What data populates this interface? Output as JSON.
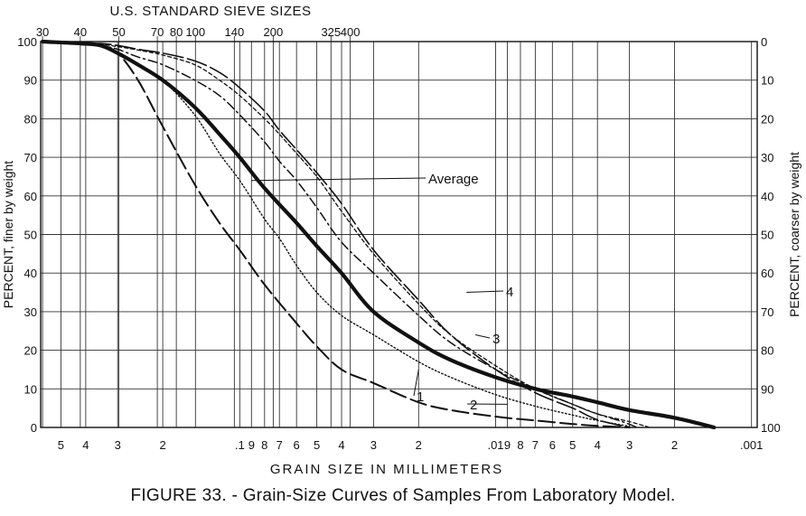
{
  "chart_data": {
    "type": "line",
    "top_axis_title": "U.S. STANDARD SIEVE SIZES",
    "top_ticks": [
      {
        "label": "30",
        "mm": 0.59
      },
      {
        "label": "40",
        "mm": 0.42
      },
      {
        "label": "50",
        "mm": 0.297
      },
      {
        "label": "70",
        "mm": 0.21
      },
      {
        "label": "80",
        "mm": 0.177
      },
      {
        "label": "100",
        "mm": 0.149
      },
      {
        "label": "140",
        "mm": 0.105
      },
      {
        "label": "200",
        "mm": 0.074
      },
      {
        "label": "325",
        "mm": 0.044
      },
      {
        "label": "400",
        "mm": 0.037
      }
    ],
    "xlabel": "GRAIN SIZE IN MILLIMETERS",
    "x_scale": "log",
    "x_reversed": true,
    "xlim": [
      0.6,
      0.00095
    ],
    "x_ticks": [
      {
        "label": "5",
        "mm": 0.5
      },
      {
        "label": "4",
        "mm": 0.4
      },
      {
        "label": "3",
        "mm": 0.3
      },
      {
        "label": "2",
        "mm": 0.2
      },
      {
        "label": ".1",
        "mm": 0.1
      },
      {
        "label": "9",
        "mm": 0.09
      },
      {
        "label": "8",
        "mm": 0.08
      },
      {
        "label": "7",
        "mm": 0.07
      },
      {
        "label": "6",
        "mm": 0.06
      },
      {
        "label": "5",
        "mm": 0.05
      },
      {
        "label": "4",
        "mm": 0.04
      },
      {
        "label": "3",
        "mm": 0.03
      },
      {
        "label": "2",
        "mm": 0.02
      },
      {
        "label": ".01",
        "mm": 0.01
      },
      {
        "label": "9",
        "mm": 0.009
      },
      {
        "label": "8",
        "mm": 0.008
      },
      {
        "label": "7",
        "mm": 0.007
      },
      {
        "label": "6",
        "mm": 0.006
      },
      {
        "label": "5",
        "mm": 0.005
      },
      {
        "label": "4",
        "mm": 0.004
      },
      {
        "label": "3",
        "mm": 0.003
      },
      {
        "label": "2",
        "mm": 0.002
      },
      {
        "label": ".001",
        "mm": 0.001
      }
    ],
    "ylabel_left": "PERCENT, finer by weight",
    "ylabel_right": "PERCENT, coarser by weight",
    "ylim": [
      0,
      100
    ],
    "y_ticks_left": [
      "0",
      "10",
      "20",
      "30",
      "40",
      "50",
      "60",
      "70",
      "80",
      "90",
      "100"
    ],
    "y_ticks_right": [
      "100",
      "90",
      "80",
      "70",
      "60",
      "50",
      "40",
      "30",
      "20",
      "10",
      "0"
    ],
    "grid": true,
    "series": [
      {
        "name": "1",
        "style": "long-dash",
        "stroke": "#111111",
        "x": [
          0.59,
          0.42,
          0.35,
          0.3,
          0.25,
          0.2,
          0.15,
          0.12,
          0.1,
          0.08,
          0.06,
          0.05,
          0.04,
          0.03,
          0.02,
          0.015,
          0.01,
          0.007,
          0.005,
          0.004,
          0.003
        ],
        "y": [
          100,
          99.5,
          99,
          97,
          90,
          78,
          63,
          53,
          46,
          37,
          27,
          21,
          15,
          11.5,
          6.5,
          4.5,
          2.8,
          1.8,
          0.9,
          0.4,
          0
        ]
      },
      {
        "name": "2",
        "style": "dotted",
        "stroke": "#111111",
        "x": [
          0.59,
          0.42,
          0.35,
          0.3,
          0.25,
          0.2,
          0.15,
          0.12,
          0.1,
          0.08,
          0.07,
          0.06,
          0.05,
          0.04,
          0.03,
          0.02,
          0.015,
          0.01,
          0.007,
          0.005,
          0.004,
          0.003
        ],
        "y": [
          100,
          99.5,
          99,
          97,
          94,
          90,
          81,
          71,
          64,
          54,
          49,
          42,
          35,
          29,
          24,
          17,
          13,
          8.5,
          5.5,
          3.2,
          1.8,
          0.3
        ]
      },
      {
        "name": "Average",
        "style": "solid",
        "stroke": "#111111",
        "x": [
          0.59,
          0.42,
          0.35,
          0.3,
          0.25,
          0.2,
          0.15,
          0.12,
          0.1,
          0.08,
          0.06,
          0.05,
          0.04,
          0.03,
          0.02,
          0.015,
          0.01,
          0.007,
          0.005,
          0.004,
          0.003,
          0.002,
          0.0014
        ],
        "y": [
          100,
          99.5,
          99,
          97,
          94,
          90,
          83,
          76,
          70,
          62,
          53,
          47,
          40,
          30,
          22,
          17.5,
          13,
          10,
          8,
          6.5,
          4.5,
          2.5,
          0
        ]
      },
      {
        "name": "3",
        "style": "dash-dot",
        "stroke": "#111111",
        "x": [
          0.59,
          0.42,
          0.35,
          0.3,
          0.25,
          0.2,
          0.15,
          0.12,
          0.1,
          0.08,
          0.07,
          0.06,
          0.05,
          0.04,
          0.03,
          0.02,
          0.015,
          0.01,
          0.007,
          0.005,
          0.004,
          0.0032,
          0.0028
        ],
        "y": [
          100,
          99.5,
          99,
          98,
          96,
          94,
          90,
          86,
          81,
          74,
          69,
          64,
          57,
          48,
          40,
          29,
          22,
          15,
          10,
          6,
          3.5,
          1.5,
          0
        ]
      },
      {
        "name": "",
        "style": "short-dash",
        "stroke": "#111111",
        "x": [
          0.59,
          0.42,
          0.35,
          0.3,
          0.25,
          0.2,
          0.15,
          0.12,
          0.1,
          0.08,
          0.07,
          0.06,
          0.05,
          0.04,
          0.03,
          0.02,
          0.015,
          0.01,
          0.007,
          0.005,
          0.004,
          0.003,
          0.0025
        ],
        "y": [
          100,
          99.6,
          99.3,
          98.7,
          97.8,
          96.5,
          94,
          90,
          86,
          80,
          76,
          71,
          65,
          56,
          45,
          32,
          24,
          16,
          10,
          6,
          3.5,
          1.5,
          0
        ]
      },
      {
        "name": "4",
        "style": "long-dash-thin",
        "stroke": "#111111",
        "x": [
          0.59,
          0.42,
          0.35,
          0.3,
          0.25,
          0.2,
          0.15,
          0.12,
          0.1,
          0.08,
          0.07,
          0.06,
          0.05,
          0.04,
          0.03,
          0.02,
          0.015,
          0.01,
          0.007,
          0.005,
          0.004,
          0.003
        ],
        "y": [
          100,
          99.5,
          99.5,
          99,
          98,
          97,
          95,
          92,
          88,
          82,
          77,
          72,
          66,
          58,
          46,
          33,
          24,
          15,
          9,
          5,
          2,
          0
        ]
      }
    ],
    "annotations": [
      {
        "text": "Average",
        "target_series": "Average",
        "at_mm": 0.09,
        "at_pct": 64
      },
      {
        "text": "1",
        "target_series": "1",
        "at_mm": 0.02,
        "at_pct": 15
      },
      {
        "text": "2",
        "target_series": "2",
        "at_mm": 0.009,
        "at_pct": 6
      },
      {
        "text": "3",
        "target_series": "3",
        "at_mm": 0.012,
        "at_pct": 24
      },
      {
        "text": "4",
        "target_series": "4",
        "at_mm": 0.013,
        "at_pct": 35
      }
    ]
  },
  "caption": "FIGURE 33. - Grain-Size Curves of Samples From Laboratory Model."
}
